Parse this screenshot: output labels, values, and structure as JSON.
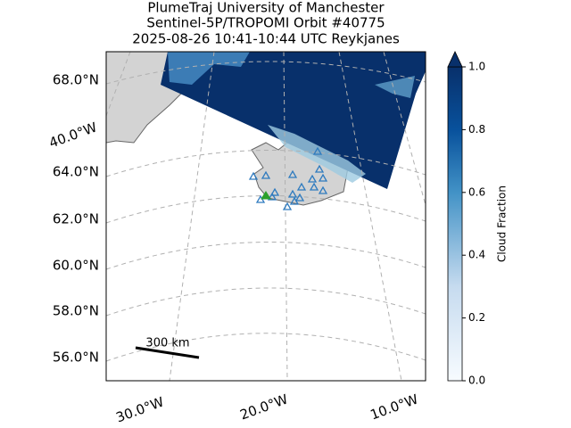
{
  "title": [
    "PlumeTraj    University of Manchester",
    "Sentinel-5P/TROPOMI Orbit #40775",
    "2025-08-26   10:41-10:44 UTC   Reykjanes"
  ],
  "map": {
    "lat_labels": [
      "68.0°N",
      "64.0°N",
      "62.0°N",
      "60.0°N",
      "58.0°N",
      "56.0°N"
    ],
    "lon_labels": [
      "40.0°W",
      "30.0°W",
      "20.0°W",
      "10.0°W"
    ],
    "scale_bar": "300 km"
  },
  "colorbar": {
    "label": "Cloud Fraction",
    "range": [
      0,
      1
    ],
    "ticks": [
      {
        "value": 0,
        "label": "0.0"
      },
      {
        "value": 0.2,
        "label": "0.2"
      },
      {
        "value": 0.4,
        "label": "0.4"
      },
      {
        "value": 0.6,
        "label": "0.6"
      },
      {
        "value": 0.8,
        "label": "0.8"
      },
      {
        "value": 1,
        "label": "1.0"
      }
    ]
  }
}
